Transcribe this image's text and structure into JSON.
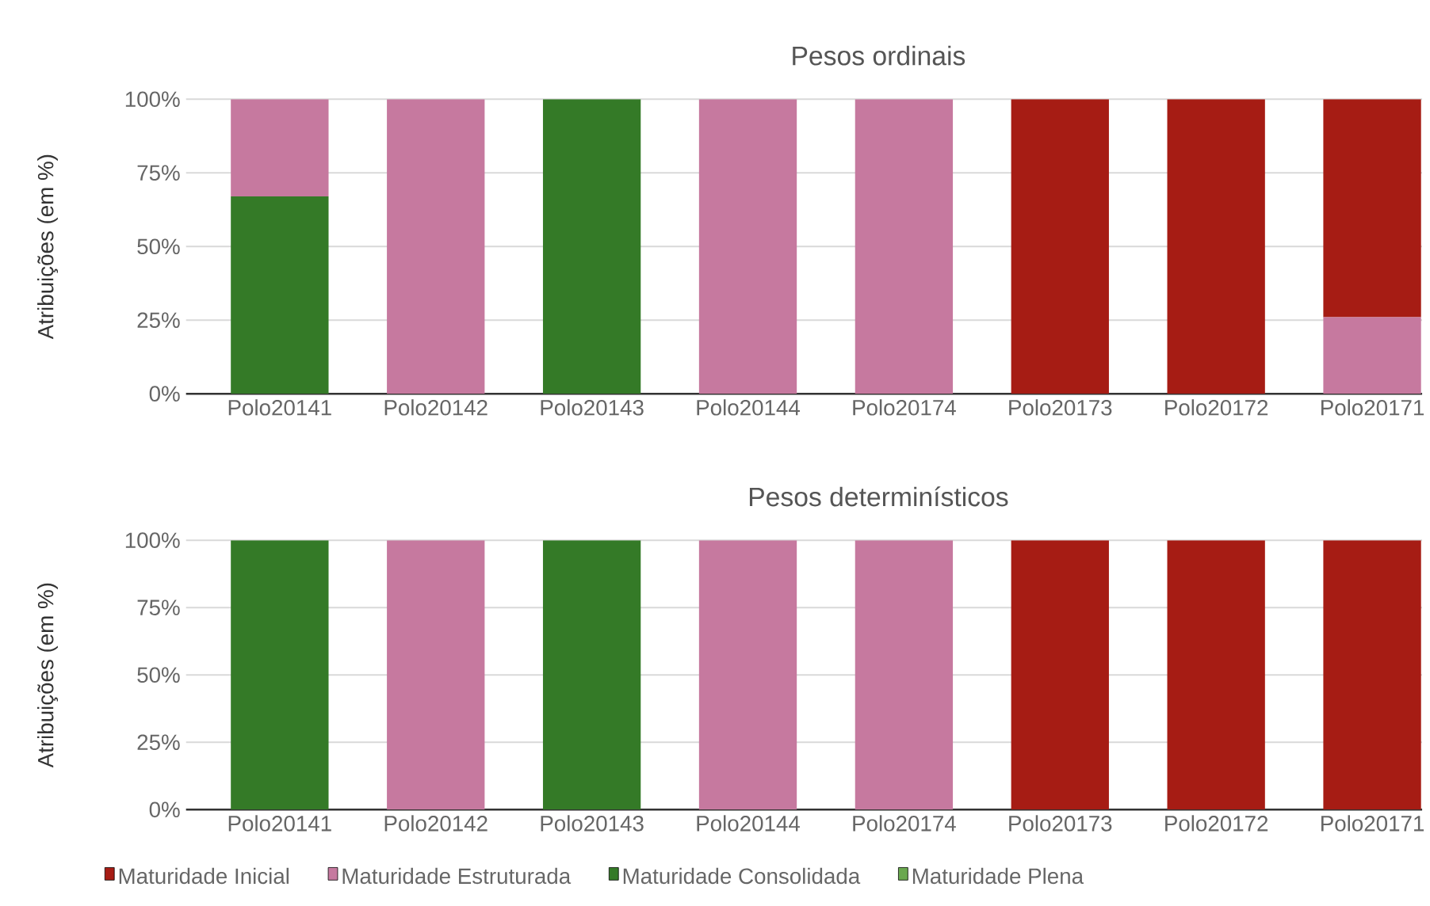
{
  "chart_data": [
    {
      "type": "bar",
      "title": "Pesos ordinais",
      "ylabel": "Atribuições (em %)",
      "stacked": true,
      "grid": "y",
      "legend": false,
      "categories": [
        "Polo20141",
        "Polo20142",
        "Polo20143",
        "Polo20144",
        "Polo20174",
        "Polo20173",
        "Polo20172",
        "Polo20171"
      ],
      "ylim": [
        0,
        100
      ],
      "yticks": [
        {
          "value": 0,
          "label": "0%"
        },
        {
          "value": 25,
          "label": "25%"
        },
        {
          "value": 50,
          "label": "50%"
        },
        {
          "value": 75,
          "label": "75%"
        },
        {
          "value": 100,
          "label": "100%"
        }
      ],
      "series": [
        {
          "color": "#6aa84f",
          "values": [
            0,
            0,
            0,
            0,
            0,
            0,
            0,
            0
          ]
        },
        {
          "color": "#347a27",
          "values": [
            67,
            0,
            100,
            0,
            0,
            0,
            0,
            0
          ]
        },
        {
          "color": "#c6799f",
          "values": [
            33,
            100,
            0,
            100,
            100,
            0,
            0,
            26
          ]
        },
        {
          "color": "#a61c14",
          "values": [
            0,
            0,
            0,
            0,
            0,
            100,
            100,
            74
          ]
        }
      ]
    },
    {
      "type": "bar",
      "title": "Pesos determinísticos",
      "ylabel": "Atribuições (em %)",
      "stacked": true,
      "grid": "y",
      "legend": "bottom",
      "categories": [
        "Polo20141",
        "Polo20142",
        "Polo20143",
        "Polo20144",
        "Polo20174",
        "Polo20173",
        "Polo20172",
        "Polo20171"
      ],
      "ylim": [
        0,
        100
      ],
      "yticks": [
        {
          "value": 0,
          "label": "0%"
        },
        {
          "value": 25,
          "label": "25%"
        },
        {
          "value": 50,
          "label": "50%"
        },
        {
          "value": 75,
          "label": "75%"
        },
        {
          "value": 100,
          "label": "100%"
        }
      ],
      "series": [
        {
          "name": "Maturidade Plena",
          "color": "#6aa84f",
          "values": [
            0,
            0,
            0,
            0,
            0,
            0,
            0,
            0
          ]
        },
        {
          "name": "Maturidade Consolidada",
          "color": "#347a27",
          "values": [
            100,
            0,
            100,
            0,
            0,
            0,
            0,
            0
          ]
        },
        {
          "name": "Maturidade Estruturada",
          "color": "#c6799f",
          "values": [
            0,
            100,
            0,
            100,
            100,
            0,
            0,
            0
          ]
        },
        {
          "name": "Maturidade Inicial",
          "color": "#a61c14",
          "values": [
            0,
            0,
            0,
            0,
            0,
            100,
            100,
            100
          ]
        }
      ]
    }
  ]
}
